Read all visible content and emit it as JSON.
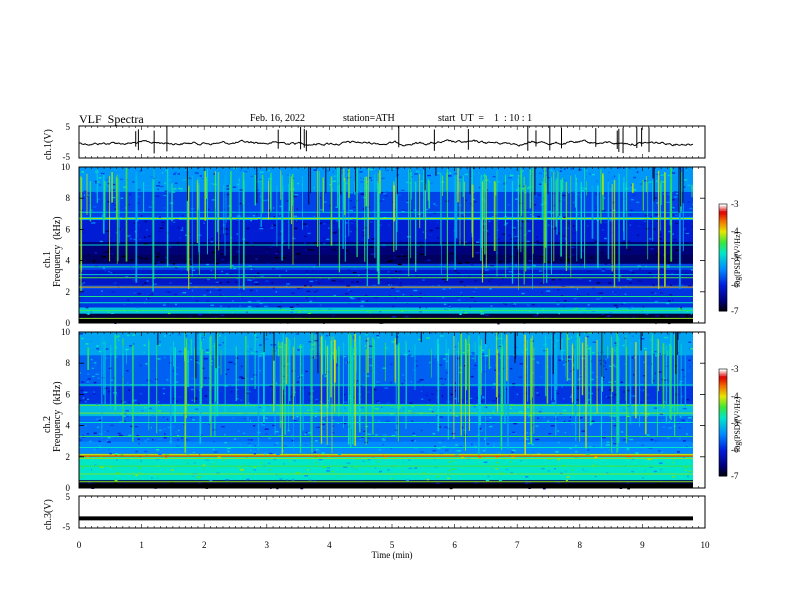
{
  "header": {
    "title": "VLF  Spectra",
    "date": "Feb. 16, 2022",
    "station": "station=ATH",
    "start": "start  UT  =    1  : 10 : 1"
  },
  "chart_data": [
    {
      "type": "line",
      "ylabel": "ch.1(V)",
      "ylim": [
        -5,
        5
      ],
      "yticks": [
        "5",
        "-5"
      ],
      "xlim": [
        0,
        10
      ],
      "trace": "noisy waveform near 0 V with spikes"
    },
    {
      "type": "heatmap",
      "ylabel_top": "ch.1",
      "ylabel": "Frequency  (kHz)",
      "ylim": [
        0,
        10
      ],
      "yticks": [
        "0",
        "2",
        "4",
        "6",
        "8",
        "10"
      ],
      "xlim": [
        0,
        10
      ],
      "colorbar": {
        "label": "log(PSD)(V²/Hz)",
        "ticks": [
          "-3",
          "-4",
          "-5",
          "-6",
          "-7"
        ],
        "range": [
          -7,
          -3
        ]
      }
    },
    {
      "type": "heatmap",
      "ylabel_top": "ch.2",
      "ylabel": "Frequency  (kHz)",
      "ylim": [
        0,
        10
      ],
      "yticks": [
        "0",
        "2",
        "4",
        "6",
        "8",
        "10"
      ],
      "xlim": [
        0,
        10
      ],
      "colorbar": {
        "label": "log(PSD)(V²/Hz)",
        "ticks": [
          "-3",
          "-4",
          "-5",
          "-6",
          "-7"
        ],
        "range": [
          -7,
          -3
        ]
      }
    },
    {
      "type": "line",
      "ylabel": "ch.3(V)",
      "ylim": [
        -5,
        5
      ],
      "yticks": [
        "5",
        "-5"
      ],
      "xlim": [
        0,
        10
      ],
      "value": -2,
      "xlabel": "Time  (min)",
      "xticks": [
        "0",
        "1",
        "2",
        "3",
        "4",
        "5",
        "6",
        "7",
        "8",
        "9",
        "10"
      ]
    }
  ]
}
